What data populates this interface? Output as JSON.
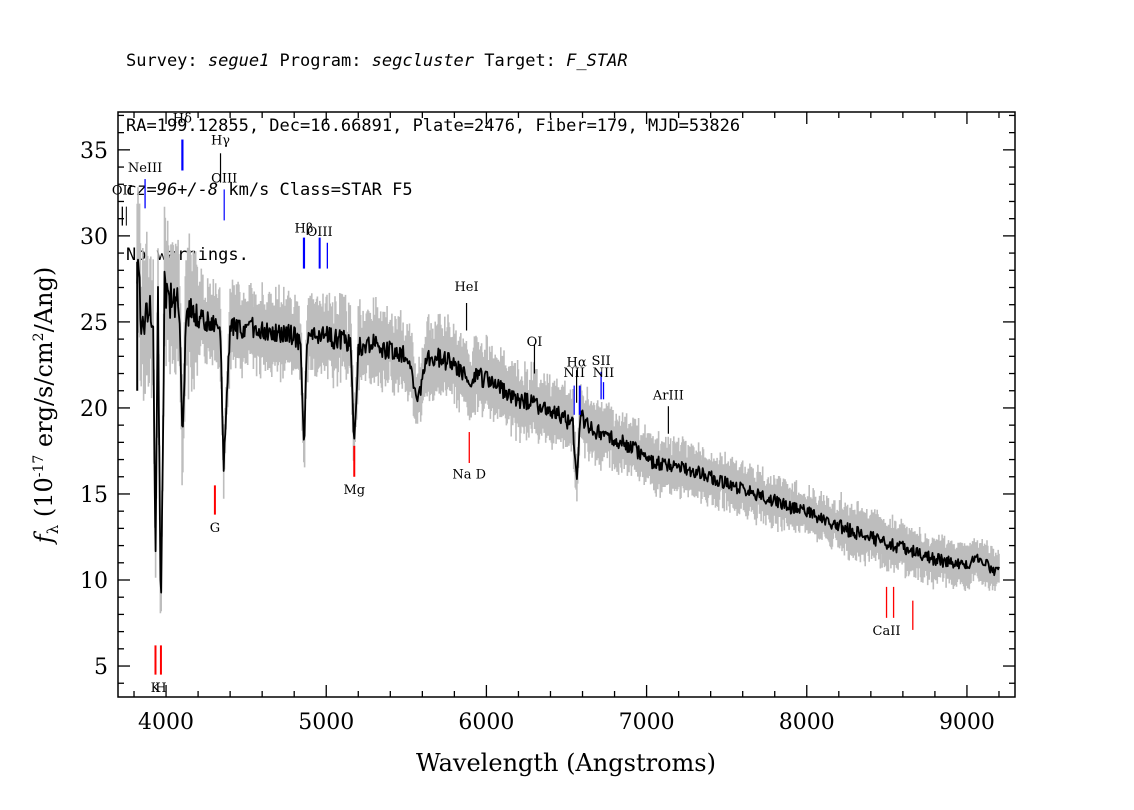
{
  "header": {
    "survey_label": "Survey: ",
    "survey": "segue1",
    "program_label": " Program: ",
    "program": "segcluster",
    "target_label": " Target: ",
    "target": "F_STAR",
    "line2": "RA=199.12855, Dec=16.66891, Plate=2476, Fiber=179, MJD=53826",
    "cz": "cz=96+/-8",
    "line3_rest": " km/s Class=STAR F5",
    "line4": "No warnings."
  },
  "chart_data": {
    "type": "line",
    "xlabel": "Wavelength (Angstroms)",
    "ylabel": "f_λ (10^-17 erg/s/cm^2/Ang)",
    "xlim": [
      3700,
      9300
    ],
    "ylim": [
      3.2,
      37.2
    ],
    "x_ticks": [
      4000,
      5000,
      6000,
      7000,
      8000,
      9000
    ],
    "y_ticks": [
      5,
      10,
      15,
      20,
      25,
      30,
      35
    ],
    "grid": false,
    "colors": {
      "flux": "#000000",
      "error": "#bdbdbd",
      "emission": "#0000ff",
      "absorption": "#ff0000",
      "other": "#000000"
    },
    "series": [
      {
        "role": "flux",
        "x": [
          3820,
          3850,
          3880,
          3900,
          3920,
          3934,
          3950,
          3968,
          3990,
          4010,
          4050,
          4080,
          4102,
          4130,
          4180,
          4250,
          4300,
          4340,
          4360,
          4400,
          4450,
          4500,
          4550,
          4600,
          4650,
          4700,
          4750,
          4800,
          4840,
          4861,
          4880,
          4920,
          4960,
          5000,
          5050,
          5100,
          5150,
          5175,
          5200,
          5250,
          5300,
          5350,
          5400,
          5450,
          5500,
          5577,
          5620,
          5700,
          5800,
          5890,
          5950,
          6000,
          6050,
          6100,
          6150,
          6200,
          6300,
          6400,
          6450,
          6500,
          6540,
          6563,
          6590,
          6650,
          6700,
          6750,
          6800,
          6900,
          7000,
          7050,
          7100,
          7200,
          7300,
          7400,
          7500,
          7600,
          7700,
          7800,
          7900,
          8000,
          8100,
          8200,
          8300,
          8400,
          8500,
          8600,
          8700,
          8800,
          8900,
          9000,
          9050,
          9100,
          9150,
          9200
        ],
        "y": [
          28.5,
          24.8,
          25.5,
          26.2,
          25,
          11,
          26,
          7,
          27,
          26.6,
          25.8,
          26.2,
          19,
          25.5,
          25.2,
          25,
          24.8,
          24,
          16.5,
          24.8,
          24.6,
          24.5,
          24.7,
          24.4,
          24.5,
          24.3,
          24.3,
          24.2,
          23.8,
          17.5,
          23.7,
          24.2,
          24.2,
          24.3,
          24,
          24,
          23.8,
          17.8,
          23.6,
          23.5,
          23.8,
          23.4,
          23.3,
          23.2,
          23.1,
          20.5,
          23,
          22.9,
          22.6,
          21.5,
          21.9,
          21.6,
          21.3,
          21.1,
          20.7,
          20.5,
          20.3,
          19.6,
          19.7,
          19.3,
          19,
          15.8,
          19.5,
          18.8,
          18.6,
          18.3,
          18.2,
          17.8,
          17.1,
          16.8,
          16.8,
          16.5,
          16.3,
          16,
          15.6,
          15.3,
          14.9,
          14.6,
          14.2,
          14,
          13.5,
          13.1,
          12.8,
          12.5,
          12.1,
          11.9,
          11.5,
          11.2,
          11,
          10.8,
          11.2,
          11.1,
          10.6,
          10.5
        ]
      }
    ],
    "spectral_lines": [
      {
        "label": "OII",
        "wavelength": 3727,
        "kind": "emission",
        "color": "#000000",
        "label_y": 32.4,
        "y_top": 31.7,
        "y_bottom": 30.6,
        "width": 1.3,
        "double": true
      },
      {
        "label": "NeIII",
        "wavelength": 3869,
        "kind": "emission",
        "color": "#0000ff",
        "label_y": 33.7,
        "y_top": 33.3,
        "y_bottom": 31.6,
        "width": 1.3
      },
      {
        "label": "Hδ",
        "wavelength": 4102,
        "kind": "emission",
        "color": "#0000ff",
        "label_y": 36.6,
        "y_top": 35.6,
        "y_bottom": 33.8,
        "width": 2.2
      },
      {
        "label": "Hγ",
        "wavelength": 4340,
        "kind": "emission",
        "color": "#000000",
        "label_y": 35.3,
        "y_top": 34.8,
        "y_bottom": 33.1,
        "width": 1.2
      },
      {
        "label": "OIII",
        "wavelength": 4363,
        "kind": "emission",
        "color": "#0000ff",
        "label_y": 33.1,
        "y_top": 32.7,
        "y_bottom": 30.9,
        "width": 1.2
      },
      {
        "label": "Hβ",
        "wavelength": 4861,
        "kind": "emission",
        "color": "#0000ff",
        "label_y": 30.2,
        "y_top": 29.9,
        "y_bottom": 28.1,
        "width": 2.2
      },
      {
        "label": "OIII",
        "wavelength": 4959,
        "kind": "emission",
        "color": "#0000ff",
        "label_y": 30,
        "y_top": 29.9,
        "y_bottom": 28.1,
        "width": 2
      },
      {
        "label": "",
        "wavelength": 5007,
        "kind": "emission",
        "color": "#0000ff",
        "y_top": 29.6,
        "y_bottom": 28.1,
        "width": 1.3
      },
      {
        "label": "HeI",
        "wavelength": 5876,
        "kind": "emission",
        "color": "#000000",
        "label_y": 26.8,
        "y_top": 26.1,
        "y_bottom": 24.5,
        "width": 1.2
      },
      {
        "label": "OI",
        "wavelength": 6300,
        "kind": "emission",
        "color": "#000000",
        "label_y": 23.6,
        "y_top": 23.7,
        "y_bottom": 22,
        "width": 1.2
      },
      {
        "label": "NII",
        "wavelength": 6548,
        "kind": "emission",
        "color": "#0000ff",
        "label_y": 21.8,
        "y_top": 21.3,
        "y_bottom": 19.6,
        "width": 1.2
      },
      {
        "label": "Hα",
        "wavelength": 6563,
        "kind": "emission",
        "color": "#000000",
        "label_y": 22.4,
        "y_top": 22.2,
        "y_bottom": 20.3,
        "width": 1.2
      },
      {
        "label": "",
        "wavelength": 6583,
        "kind": "emission",
        "color": "#0000ff",
        "y_top": 21.3,
        "y_bottom": 19.6,
        "width": 2
      },
      {
        "label": "SII",
        "wavelength": 6716,
        "kind": "emission",
        "color": "#0000ff",
        "label_y": 22.5,
        "y_top": 22.1,
        "y_bottom": 20.5,
        "width": 1.3
      },
      {
        "label": "NII",
        "wavelength": 6731,
        "kind": "emission",
        "color": "#0000ff",
        "label_y": 21.8,
        "y_top": 21.5,
        "y_bottom": 20.5,
        "width": 1.3
      },
      {
        "label": "ArIII",
        "wavelength": 7136,
        "kind": "emission",
        "color": "#000000",
        "label_y": 20.5,
        "y_top": 20.1,
        "y_bottom": 18.5,
        "width": 1.2
      },
      {
        "label": "K",
        "wavelength": 3934,
        "kind": "absorption",
        "color": "#ff0000",
        "label_y": 3.5,
        "y_top": 6.2,
        "y_bottom": 4.5,
        "width": 2
      },
      {
        "label": "H",
        "wavelength": 3968,
        "kind": "absorption",
        "color": "#ff0000",
        "label_y": 3.5,
        "y_top": 6.2,
        "y_bottom": 4.5,
        "width": 2
      },
      {
        "label": "G",
        "wavelength": 4305,
        "kind": "absorption",
        "color": "#ff0000",
        "label_y": 12.8,
        "y_top": 15.5,
        "y_bottom": 13.8,
        "width": 2
      },
      {
        "label": "Mg",
        "wavelength": 5175,
        "kind": "absorption",
        "color": "#ff0000",
        "label_y": 15,
        "y_top": 17.8,
        "y_bottom": 16,
        "width": 2
      },
      {
        "label": "Na D",
        "wavelength": 5893,
        "kind": "absorption",
        "color": "#ff0000",
        "label_y": 15.9,
        "y_top": 18.6,
        "y_bottom": 16.8,
        "width": 1.3
      },
      {
        "label": "CaII",
        "wavelength": 8498,
        "kind": "absorption",
        "color": "#ff0000",
        "label_y": 6.8,
        "y_top": 9.6,
        "y_bottom": 7.8,
        "width": 1.3
      },
      {
        "label": "",
        "wavelength": 8542,
        "kind": "absorption",
        "color": "#ff0000",
        "y_top": 9.6,
        "y_bottom": 7.8,
        "width": 1.3
      },
      {
        "label": "",
        "wavelength": 8662,
        "kind": "absorption",
        "color": "#ff0000",
        "y_top": 8.8,
        "y_bottom": 7.1,
        "width": 1.3
      }
    ]
  }
}
